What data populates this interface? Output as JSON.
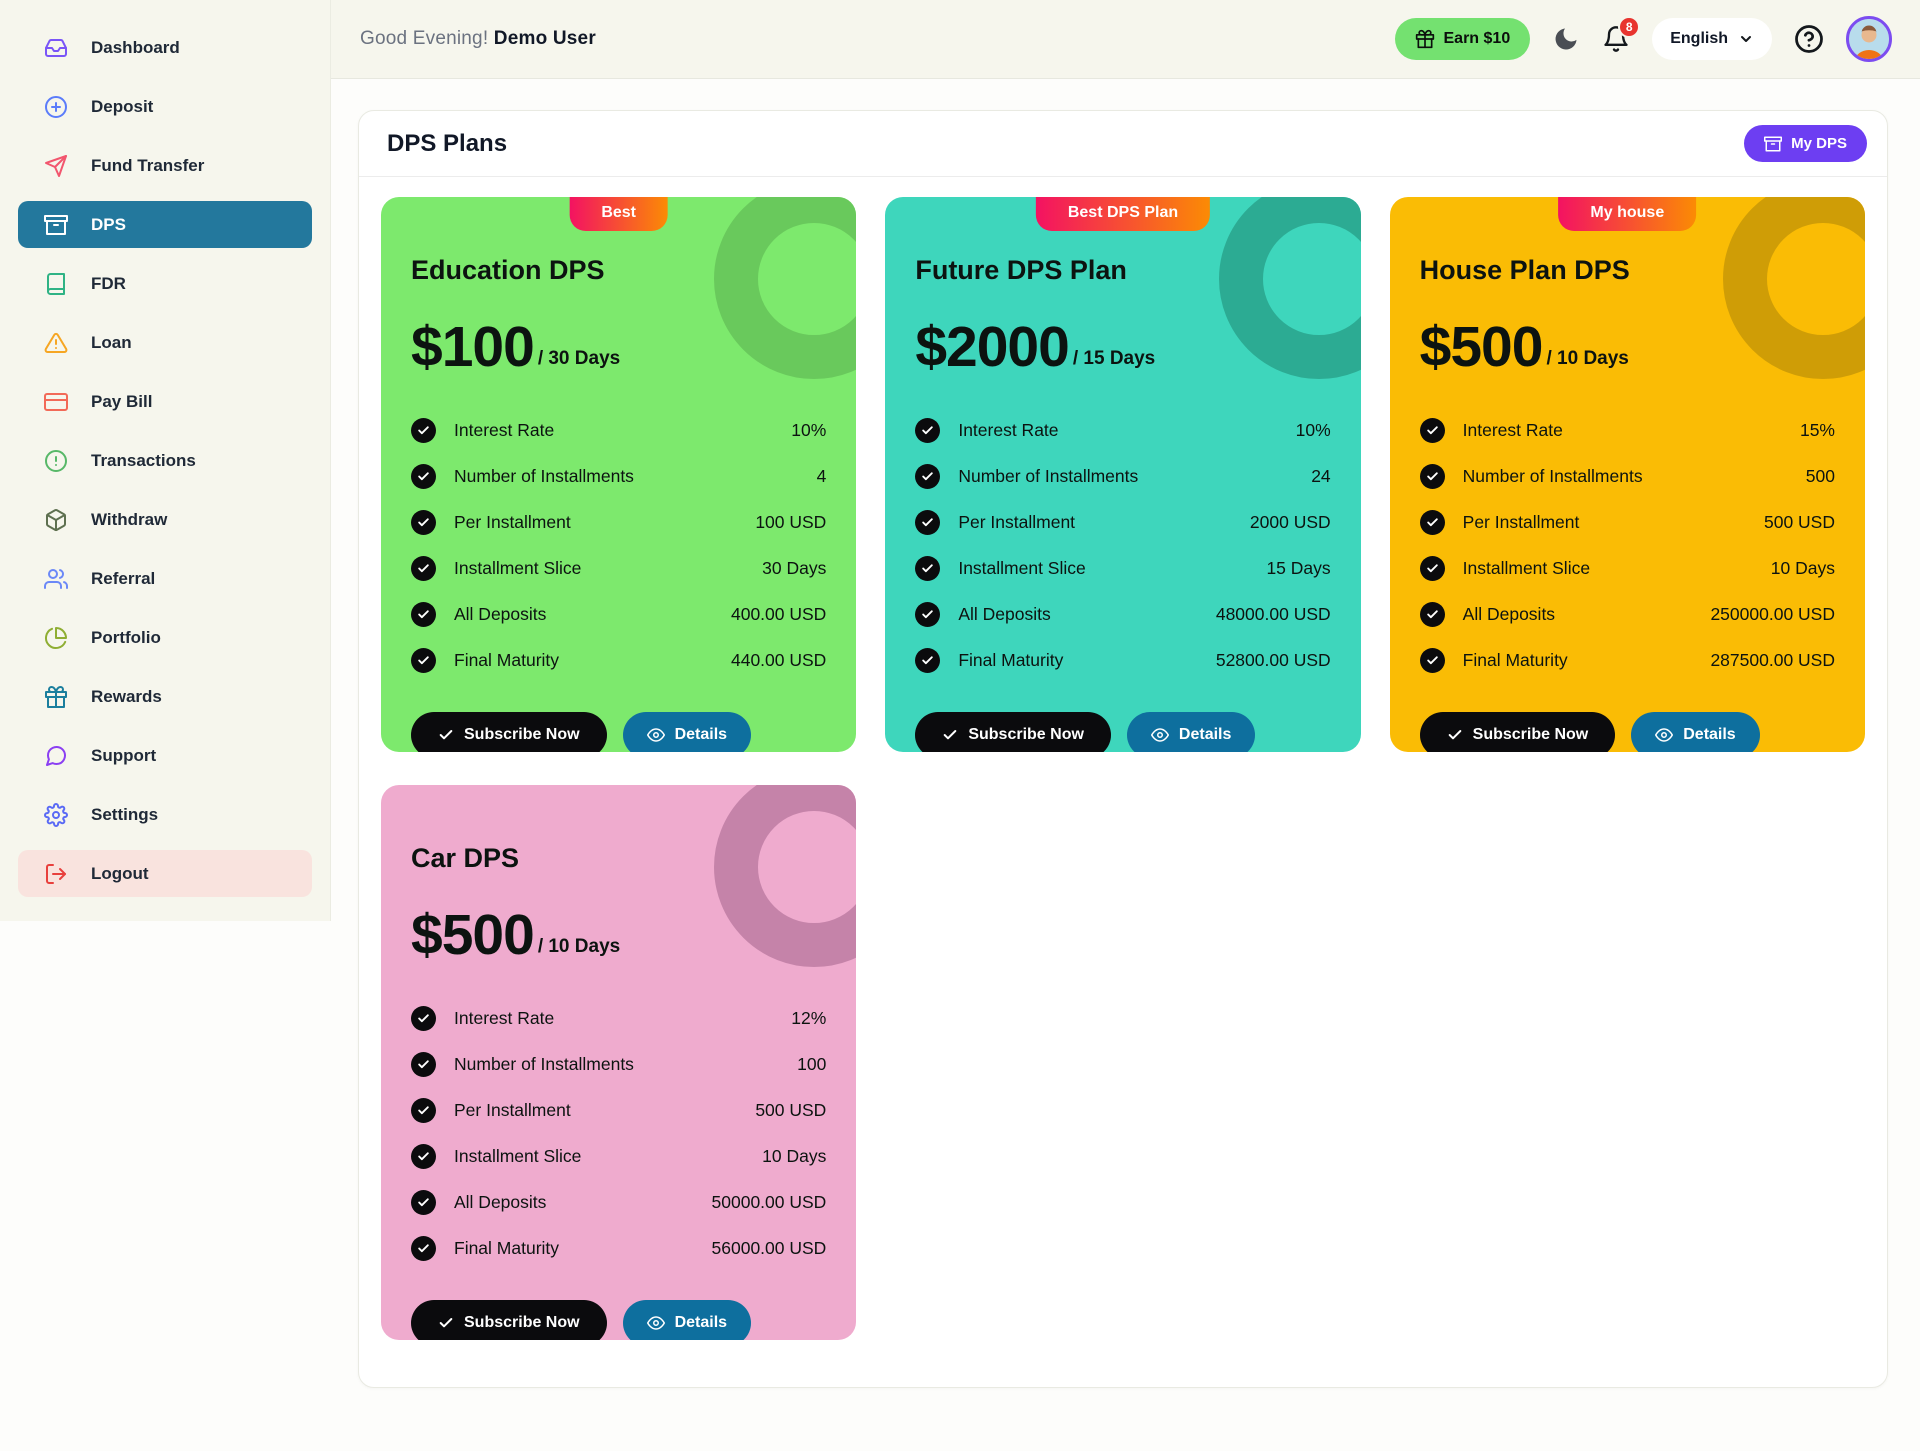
{
  "topbar": {
    "greeting": "Good Evening!",
    "username": "Demo User",
    "earn_label": "Earn $10",
    "notification_count": "8",
    "language": "English"
  },
  "sidebar": {
    "active_bg": "#23789d",
    "items": [
      {
        "label": "Dashboard",
        "icon": "inbox",
        "color": "#7a55f7"
      },
      {
        "label": "Deposit",
        "icon": "plus-circle",
        "color": "#5b7cfa"
      },
      {
        "label": "Fund Transfer",
        "icon": "send",
        "color": "#f2566e"
      },
      {
        "label": "DPS",
        "icon": "archive",
        "color": "#ffffff",
        "active": true
      },
      {
        "label": "FDR",
        "icon": "book",
        "color": "#2fb385"
      },
      {
        "label": "Loan",
        "icon": "alert-triangle",
        "color": "#f6a623"
      },
      {
        "label": "Pay Bill",
        "icon": "credit-card",
        "color": "#f26a58"
      },
      {
        "label": "Transactions",
        "icon": "alert-circle",
        "color": "#57b868"
      },
      {
        "label": "Withdraw",
        "icon": "box",
        "color": "#5e7050"
      },
      {
        "label": "Referral",
        "icon": "users",
        "color": "#6b88f7"
      },
      {
        "label": "Portfolio",
        "icon": "pie-chart",
        "color": "#8fae33"
      },
      {
        "label": "Rewards",
        "icon": "gift",
        "color": "#1b7f9e"
      },
      {
        "label": "Support",
        "icon": "message-circle",
        "color": "#8b3ff2"
      },
      {
        "label": "Settings",
        "icon": "settings",
        "color": "#5a6af5"
      },
      {
        "label": "Logout",
        "icon": "log-out",
        "color": "#e8403d",
        "logout": true
      }
    ]
  },
  "panel": {
    "title": "DPS Plans",
    "my_dps_label": "My DPS",
    "my_dps_color": "#6d3ef2"
  },
  "cards_section": {
    "badge_gradient": {
      "from": "#f31262",
      "to": "#fb8b04"
    },
    "row_labels": [
      "Interest Rate",
      "Number of Installments",
      "Per Installment",
      "Installment Slice",
      "All Deposits",
      "Final Maturity"
    ],
    "buttons": {
      "subscribe": "Subscribe Now",
      "details": "Details"
    },
    "cards": [
      {
        "badge": "Best",
        "title": "Education DPS",
        "price": "$100",
        "period": "/ 30 Days",
        "bg": "#7de96d",
        "ring": "#69c95c",
        "values": [
          "10%",
          "4",
          "100 USD",
          "30 Days",
          "400.00 USD",
          "440.00 USD"
        ]
      },
      {
        "badge": "Best DPS Plan",
        "title": "Future DPS Plan",
        "price": "$2000",
        "period": "/ 15 Days",
        "bg": "#3ed6bc",
        "ring": "#2cab93",
        "values": [
          "10%",
          "24",
          "2000 USD",
          "15 Days",
          "48000.00 USD",
          "52800.00 USD"
        ]
      },
      {
        "badge": "My house",
        "title": "House Plan DPS",
        "price": "$500",
        "period": "/ 10 Days",
        "bg": "#fabc05",
        "ring": "#cf9d06",
        "values": [
          "15%",
          "500",
          "500 USD",
          "10 Days",
          "250000.00 USD",
          "287500.00 USD"
        ]
      },
      {
        "badge": null,
        "title": "Car DPS",
        "price": "$500",
        "period": "/ 10 Days",
        "bg": "#efabce",
        "ring": "#c583a9",
        "values": [
          "12%",
          "100",
          "500 USD",
          "10 Days",
          "50000.00 USD",
          "56000.00 USD"
        ]
      }
    ]
  }
}
